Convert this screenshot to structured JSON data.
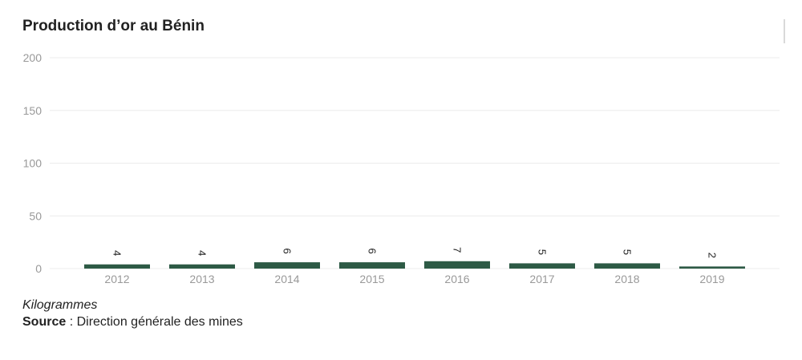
{
  "chart_data": {
    "type": "bar",
    "title": "Production d’or au Bénin",
    "categories": [
      "2012",
      "2013",
      "2014",
      "2015",
      "2016",
      "2017",
      "2018",
      "2019"
    ],
    "values": [
      4,
      4,
      6,
      6,
      7,
      5,
      5,
      2
    ],
    "data_labels": [
      "4",
      "4",
      "6",
      "6",
      "7",
      "5",
      "5",
      "2"
    ],
    "yticks": [
      "0",
      "50",
      "100",
      "150",
      "200"
    ],
    "ylim": [
      0,
      200
    ],
    "grid": true,
    "legend": "none",
    "unit": "Kilogrammes",
    "bar_color": "#2d5a45",
    "grid_color": "#ececec",
    "tick_label_color": "#999999"
  },
  "footer": {
    "source_label": "Source",
    "source_text": " : Direction générale des mines"
  }
}
